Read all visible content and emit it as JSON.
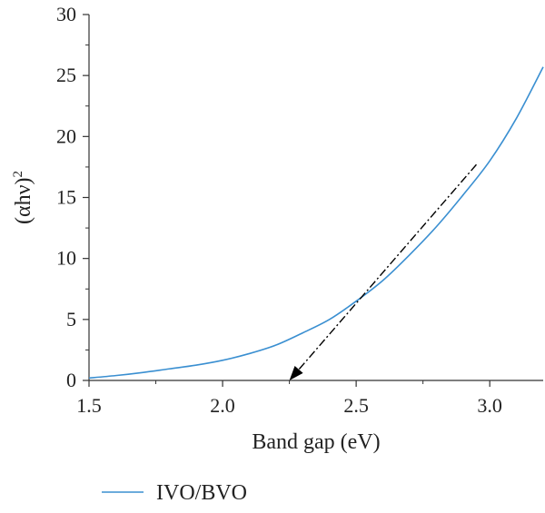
{
  "chart_data": {
    "type": "line",
    "title": "",
    "xlabel": "Band gap (eV)",
    "ylabel": "(αhν)",
    "ylabel_superscript": "2",
    "xlim": [
      1.5,
      3.2
    ],
    "ylim": [
      0,
      30
    ],
    "x_ticks": [
      1.5,
      2.0,
      2.5,
      3.0
    ],
    "x_tick_labels": [
      "1.5",
      "2.0",
      "2.5",
      "3.0"
    ],
    "x_minor_ticks": [
      1.75,
      2.25,
      2.75
    ],
    "y_ticks": [
      0,
      5,
      10,
      15,
      20,
      25,
      30
    ],
    "y_tick_labels": [
      "0",
      "5",
      "10",
      "15",
      "20",
      "25",
      "30"
    ],
    "grid": false,
    "legend_position": "bottom-left",
    "series": [
      {
        "name": "IVO/BVO",
        "color": "#3a8fd1",
        "x": [
          1.5,
          1.6,
          1.7,
          1.8,
          1.9,
          2.0,
          2.1,
          2.2,
          2.3,
          2.4,
          2.5,
          2.6,
          2.7,
          2.8,
          2.9,
          3.0,
          3.1,
          3.2
        ],
        "y": [
          0.2,
          0.4,
          0.65,
          0.95,
          1.25,
          1.65,
          2.2,
          2.9,
          3.9,
          5.0,
          6.5,
          8.2,
          10.3,
          12.6,
          15.2,
          18.0,
          21.5,
          25.7
        ]
      }
    ],
    "tangent_line": {
      "style": "dash-dot",
      "color": "#000000",
      "from": [
        2.95,
        17.7
      ],
      "to": [
        2.25,
        0
      ]
    }
  }
}
